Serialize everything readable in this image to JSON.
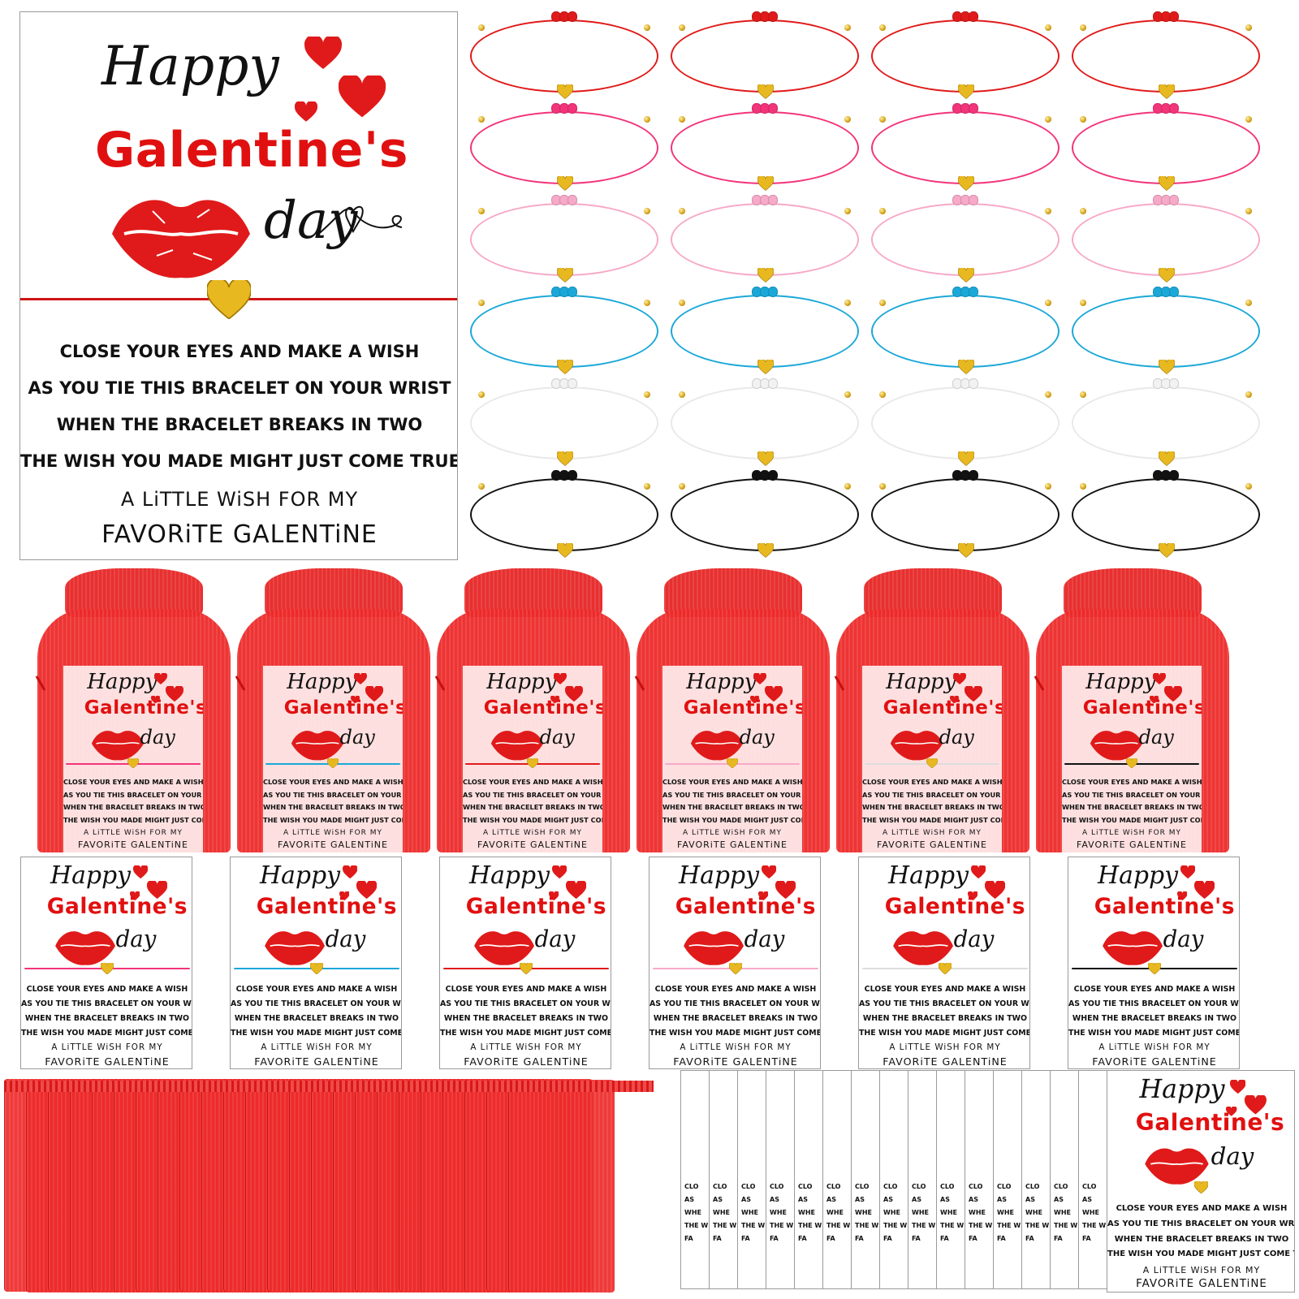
{
  "card": {
    "happy": "Happy",
    "galentines": "Galentine's",
    "day": "day",
    "poem": [
      "CLOSE YOUR EYES AND MAKE A WISH",
      "AS YOU TIE THIS BRACELET ON YOUR WRIST",
      "WHEN THE BRACELET BREAKS IN TWO",
      "THE WISH YOU MADE MIGHT JUST COME TRUE"
    ],
    "little_wish": "A LiTTLE WiSH FOR MY",
    "favorite": "FAVORiTE GALENTiNE"
  },
  "stack_partial": [
    "CLO",
    "AS",
    "WHE",
    "THE WI",
    "FA"
  ],
  "colors": {
    "red": "#e01a1a",
    "pink": "#f2347a",
    "light_pink": "#f7a9c8",
    "blue": "#1ba8d8",
    "white": "#e9e9e9",
    "black": "#111111",
    "gold": "#e0b020",
    "organza": "#ee2a2a"
  },
  "bracelet_colors": [
    "#e01a1a",
    "#f2347a",
    "#f7a9c8",
    "#1ba8d8",
    "#e9e9e9",
    "#111111"
  ],
  "small_card_cord_colors": [
    "#f2347a",
    "#1ba8d8",
    "#e01a1a",
    "#f7a9c8",
    "#dddddd",
    "#111111"
  ],
  "icons": [
    "heart-icon",
    "lips-icon",
    "heart-charm-icon"
  ]
}
